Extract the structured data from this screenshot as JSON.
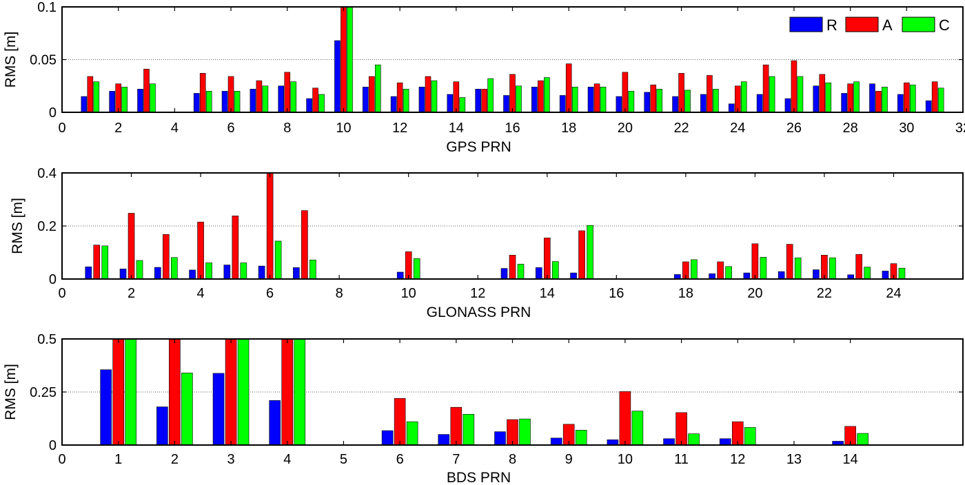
{
  "colors": {
    "R": "#0000ff",
    "A": "#ff0000",
    "C": "#00ff00"
  },
  "legend": {
    "entries": [
      "R",
      "A",
      "C"
    ]
  },
  "chart_data": [
    {
      "type": "bar",
      "xlabel": "GPS PRN",
      "ylabel": "RMS [m]",
      "xlim": [
        0,
        32
      ],
      "ylim": [
        0,
        0.1
      ],
      "xticks": [
        "0",
        "2",
        "4",
        "6",
        "8",
        "10",
        "12",
        "14",
        "16",
        "18",
        "20",
        "22",
        "24",
        "26",
        "28",
        "30",
        "32"
      ],
      "yticks": [
        "0",
        "0.05",
        "0.1"
      ],
      "grid": "horizontal dotted at 0.05",
      "legend_position": "top-right",
      "categories": [
        1,
        2,
        3,
        5,
        6,
        7,
        8,
        9,
        10,
        11,
        12,
        13,
        14,
        15,
        16,
        17,
        18,
        19,
        20,
        21,
        22,
        23,
        24,
        25,
        26,
        27,
        28,
        29,
        30,
        31
      ],
      "series": [
        {
          "name": "R",
          "values": [
            0.015,
            0.02,
            0.022,
            0.018,
            0.02,
            0.022,
            0.025,
            0.013,
            0.068,
            0.024,
            0.015,
            0.024,
            0.017,
            0.022,
            0.016,
            0.024,
            0.016,
            0.024,
            0.015,
            0.019,
            0.015,
            0.017,
            0.008,
            0.017,
            0.013,
            0.025,
            0.018,
            0.027,
            0.017,
            0.011
          ]
        },
        {
          "name": "A",
          "values": [
            0.034,
            0.027,
            0.041,
            0.037,
            0.034,
            0.03,
            0.038,
            0.023,
            0.1,
            0.034,
            0.028,
            0.034,
            0.029,
            0.022,
            0.036,
            0.03,
            0.046,
            0.027,
            0.038,
            0.026,
            0.037,
            0.035,
            0.025,
            0.045,
            0.049,
            0.036,
            0.027,
            0.02,
            0.028,
            0.029
          ]
        },
        {
          "name": "C",
          "values": [
            0.029,
            0.024,
            0.027,
            0.02,
            0.02,
            0.025,
            0.029,
            0.017,
            0.1,
            0.045,
            0.022,
            0.03,
            0.014,
            0.032,
            0.025,
            0.033,
            0.024,
            0.024,
            0.02,
            0.022,
            0.021,
            0.022,
            0.029,
            0.034,
            0.034,
            0.028,
            0.029,
            0.024,
            0.026,
            0.023
          ]
        }
      ]
    },
    {
      "type": "bar",
      "xlabel": "GLONASS PRN",
      "ylabel": "RMS [m]",
      "xlim": [
        0,
        26
      ],
      "ylim": [
        0,
        0.4
      ],
      "xticks": [
        "0",
        "2",
        "4",
        "6",
        "8",
        "10",
        "12",
        "14",
        "16",
        "18",
        "20",
        "22",
        "24"
      ],
      "yticks": [
        "0",
        "0.2",
        "0.4"
      ],
      "grid": "horizontal dotted at 0.2",
      "categories": [
        1,
        2,
        3,
        4,
        5,
        6,
        7,
        10,
        13,
        14,
        15,
        18,
        19,
        20,
        21,
        22,
        23,
        24
      ],
      "series": [
        {
          "name": "R",
          "values": [
            0.046,
            0.038,
            0.044,
            0.034,
            0.053,
            0.049,
            0.043,
            0.026,
            0.04,
            0.043,
            0.023,
            0.017,
            0.02,
            0.023,
            0.028,
            0.035,
            0.016,
            0.03
          ]
        },
        {
          "name": "A",
          "values": [
            0.128,
            0.248,
            0.168,
            0.215,
            0.238,
            0.4,
            0.258,
            0.103,
            0.09,
            0.155,
            0.182,
            0.065,
            0.065,
            0.133,
            0.131,
            0.09,
            0.093,
            0.058
          ]
        },
        {
          "name": "C",
          "values": [
            0.125,
            0.07,
            0.081,
            0.061,
            0.061,
            0.143,
            0.072,
            0.077,
            0.056,
            0.066,
            0.202,
            0.073,
            0.047,
            0.082,
            0.08,
            0.08,
            0.045,
            0.041
          ]
        }
      ]
    },
    {
      "type": "bar",
      "xlabel": "BDS PRN",
      "ylabel": "RMS [m]",
      "xlim": [
        0,
        16
      ],
      "ylim": [
        0,
        0.5
      ],
      "xticks": [
        "0",
        "1",
        "2",
        "3",
        "4",
        "5",
        "6",
        "7",
        "8",
        "9",
        "10",
        "11",
        "12",
        "13",
        "14"
      ],
      "yticks": [
        "0",
        "0.25",
        "0.5"
      ],
      "grid": "horizontal dotted at 0.25",
      "categories": [
        1,
        2,
        3,
        4,
        6,
        7,
        8,
        9,
        10,
        11,
        12,
        14
      ],
      "series": [
        {
          "name": "R",
          "values": [
            0.355,
            0.18,
            0.338,
            0.21,
            0.068,
            0.05,
            0.063,
            0.033,
            0.025,
            0.03,
            0.03,
            0.018
          ]
        },
        {
          "name": "A",
          "values": [
            0.5,
            0.5,
            0.5,
            0.5,
            0.22,
            0.178,
            0.12,
            0.098,
            0.252,
            0.153,
            0.11,
            0.088
          ]
        },
        {
          "name": "C",
          "values": [
            0.5,
            0.34,
            0.5,
            0.5,
            0.11,
            0.145,
            0.123,
            0.07,
            0.16,
            0.053,
            0.083,
            0.055
          ]
        }
      ]
    }
  ]
}
